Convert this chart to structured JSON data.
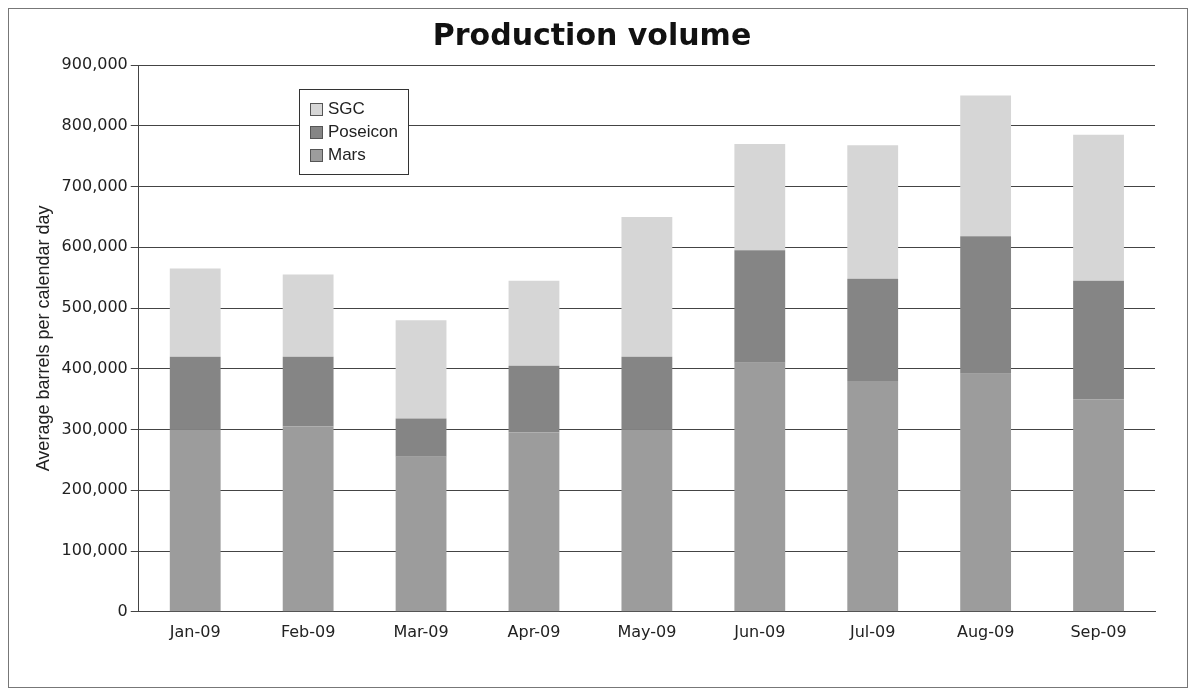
{
  "chart_data": {
    "type": "bar",
    "title": "Production volume",
    "ylabel": "Average barrels per calendar day",
    "stacked": true,
    "grid": "y",
    "legend": "top left",
    "categories": [
      "Jan-09",
      "Feb-09",
      "Mar-09",
      "Apr-09",
      "May-09",
      "Jun-09",
      "Jul-09",
      "Aug-09",
      "Sep-09"
    ],
    "ylim": [
      0,
      900000
    ],
    "yticks": [
      {
        "value": 0,
        "label": "0"
      },
      {
        "value": 100000,
        "label": "100,000"
      },
      {
        "value": 200000,
        "label": "200,000"
      },
      {
        "value": 300000,
        "label": "300,000"
      },
      {
        "value": 400000,
        "label": "400,000"
      },
      {
        "value": 500000,
        "label": "500,000"
      },
      {
        "value": 600000,
        "label": "600,000"
      },
      {
        "value": 700000,
        "label": "700,000"
      },
      {
        "value": 800000,
        "label": "800,000"
      },
      {
        "value": 900000,
        "label": "900,000"
      }
    ],
    "series": [
      {
        "name": "Mars",
        "color": "#9c9c9c",
        "values": [
          300000,
          305000,
          255000,
          295000,
          300000,
          410000,
          380000,
          392000,
          350000
        ]
      },
      {
        "name": "Poseicon",
        "color": "#858585",
        "values": [
          120000,
          115000,
          63000,
          110000,
          120000,
          185000,
          168000,
          226000,
          195000
        ]
      },
      {
        "name": "SGC",
        "color": "#d6d6d6",
        "values": [
          145000,
          135000,
          162000,
          140000,
          230000,
          175000,
          220000,
          232000,
          240000
        ]
      }
    ]
  }
}
